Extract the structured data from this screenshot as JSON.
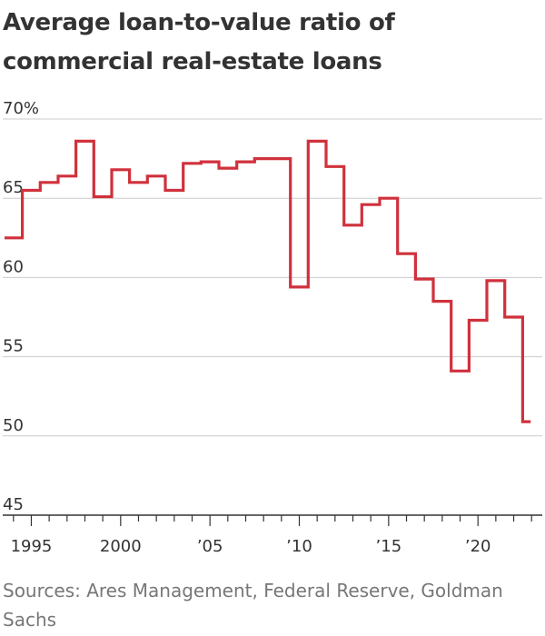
{
  "title": "Average loan-to-value ratio of commercial real-estate loans",
  "source": "Sources: Ares Management, Federal Reserve, Goldman Sachs",
  "chart_data": {
    "type": "line",
    "step": true,
    "title": "Average loan-to-value ratio of commercial real-estate loans",
    "xlabel": "",
    "ylabel": "",
    "xlim": [
      1993.4,
      2023.6
    ],
    "ylim": [
      45,
      70
    ],
    "y_ticks": [
      {
        "value": 70,
        "label": "70%"
      },
      {
        "value": 65,
        "label": "65"
      },
      {
        "value": 60,
        "label": "60"
      },
      {
        "value": 55,
        "label": "55"
      },
      {
        "value": 50,
        "label": "50"
      },
      {
        "value": 45,
        "label": "45"
      }
    ],
    "x_ticks": [
      {
        "value": 1995,
        "label": "1995"
      },
      {
        "value": 2000,
        "label": "2000"
      },
      {
        "value": 2005,
        "label": "’05"
      },
      {
        "value": 2010,
        "label": "’10"
      },
      {
        "value": 2015,
        "label": "’15"
      },
      {
        "value": 2020,
        "label": "’20"
      }
    ],
    "x_minor_ticks": [
      1994,
      1996,
      1997,
      1998,
      1999,
      2001,
      2002,
      2003,
      2004,
      2006,
      2007,
      2008,
      2009,
      2011,
      2012,
      2013,
      2014,
      2016,
      2017,
      2018,
      2019,
      2021,
      2022,
      2023
    ],
    "grid": true,
    "line_color": "#d0313c",
    "x": [
      1994,
      1995,
      1996,
      1997,
      1998,
      1999,
      2000,
      2001,
      2002,
      2003,
      2004,
      2005,
      2006,
      2007,
      2008,
      2009,
      2010,
      2011,
      2012,
      2013,
      2014,
      2015,
      2016,
      2017,
      2018,
      2019,
      2020,
      2021,
      2022,
      2023
    ],
    "values": [
      62.5,
      65.5,
      66.0,
      66.4,
      68.6,
      65.1,
      66.8,
      66.0,
      66.4,
      65.5,
      67.2,
      67.3,
      66.9,
      67.3,
      67.5,
      67.5,
      59.4,
      68.6,
      67.0,
      63.3,
      64.6,
      65.0,
      61.5,
      59.9,
      58.5,
      54.1,
      57.3,
      59.8,
      57.5,
      50.9
    ]
  }
}
